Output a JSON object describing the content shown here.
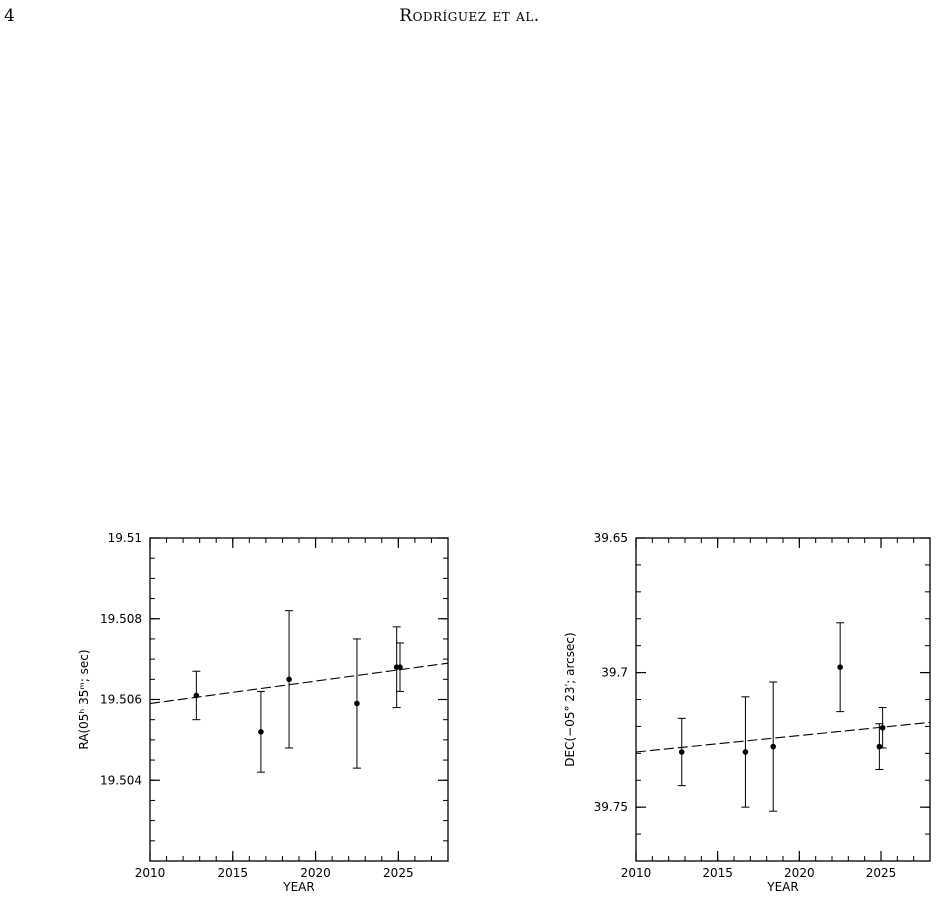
{
  "page": {
    "page_number": "4",
    "running_head": "Rodríguez et al."
  },
  "chart_data": [
    {
      "type": "scatter",
      "title": "",
      "xlabel": "YEAR",
      "ylabel": "RA(05ʰ 35ᵐ; sec)",
      "xlim": [
        2010,
        2028
      ],
      "ylim": [
        19.502,
        19.51
      ],
      "y_inverted": false,
      "x_ticks": [
        2010,
        2015,
        2020,
        2025
      ],
      "x_tick_labels": [
        "2010",
        "2015",
        "2020",
        "2025"
      ],
      "y_ticks": [
        19.504,
        19.506,
        19.508,
        19.51
      ],
      "y_tick_labels": [
        "19.504",
        "19.506",
        "19.508",
        "19.51"
      ],
      "series": [
        {
          "points": [
            {
              "x": 2012.8,
              "y": 19.5061,
              "err": 0.0006
            },
            {
              "x": 2016.7,
              "y": 19.5052,
              "err": 0.001
            },
            {
              "x": 2018.4,
              "y": 19.5065,
              "err": 0.0017
            },
            {
              "x": 2022.5,
              "y": 19.5059,
              "err": 0.0016
            },
            {
              "x": 2024.9,
              "y": 19.5068,
              "err": 0.001
            },
            {
              "x": 2025.1,
              "y": 19.5068,
              "err": 0.0006
            }
          ]
        }
      ],
      "fit_line": {
        "style": "dashed",
        "x": [
          2010,
          2028
        ],
        "y": [
          19.5059,
          19.5069
        ]
      },
      "grid": false
    },
    {
      "type": "scatter",
      "title": "",
      "xlabel": "YEAR",
      "ylabel": "DEC(−05° 23′; arcsec)",
      "xlim": [
        2010,
        2028
      ],
      "ylim": [
        39.65,
        39.77
      ],
      "y_inverted": true,
      "x_ticks": [
        2010,
        2015,
        2020,
        2025
      ],
      "x_tick_labels": [
        "2010",
        "2015",
        "2020",
        "2025"
      ],
      "y_ticks": [
        39.65,
        39.7,
        39.75
      ],
      "y_tick_labels": [
        "39.65",
        "39.7",
        "39.75"
      ],
      "series": [
        {
          "points": [
            {
              "x": 2012.8,
              "y": 39.7295,
              "err": 0.0125
            },
            {
              "x": 2016.7,
              "y": 39.7295,
              "err": 0.0205
            },
            {
              "x": 2018.4,
              "y": 39.7275,
              "err": 0.024
            },
            {
              "x": 2022.5,
              "y": 39.698,
              "err": 0.0165
            },
            {
              "x": 2024.9,
              "y": 39.7275,
              "err": 0.0085
            },
            {
              "x": 2025.1,
              "y": 39.7205,
              "err": 0.0075
            }
          ]
        }
      ],
      "fit_line": {
        "style": "dashed",
        "x": [
          2010,
          2028
        ],
        "y": [
          39.7295,
          39.7185
        ]
      },
      "grid": false
    }
  ]
}
